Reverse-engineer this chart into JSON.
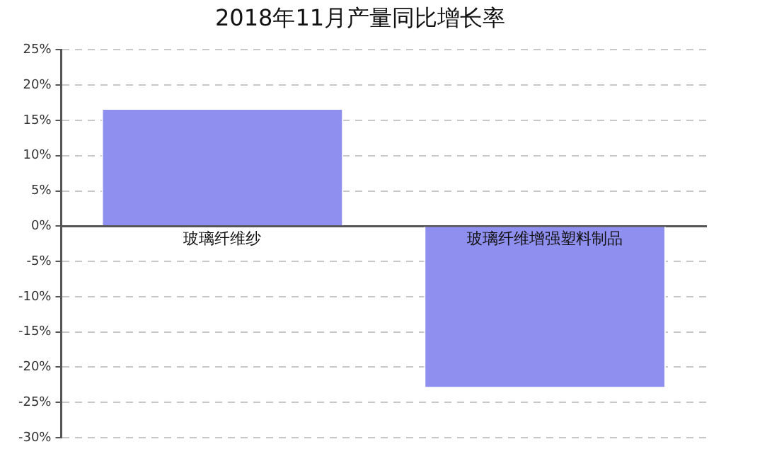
{
  "chart_data": {
    "type": "bar",
    "title": "2018年11月产量同比增长率",
    "categories": [
      "玻璃纤维纱",
      "玻璃纤维增强塑料制品"
    ],
    "values": [
      16.7,
      -23.0
    ],
    "color": "#8f8fef",
    "ylim": [
      -30,
      25
    ],
    "yticks": [
      {
        "value": -30,
        "label": "-30%"
      },
      {
        "value": -25,
        "label": "-25%"
      },
      {
        "value": -20,
        "label": "-20%"
      },
      {
        "value": -15,
        "label": "-15%"
      },
      {
        "value": -10,
        "label": "-10%"
      },
      {
        "value": -5,
        "label": "-5%"
      },
      {
        "value": 0,
        "label": "0%"
      },
      {
        "value": 5,
        "label": "5%"
      },
      {
        "value": 10,
        "label": "10%"
      },
      {
        "value": 15,
        "label": "15%"
      },
      {
        "value": 20,
        "label": "20%"
      },
      {
        "value": 25,
        "label": "25%"
      }
    ],
    "grid": "y",
    "legend": false
  }
}
